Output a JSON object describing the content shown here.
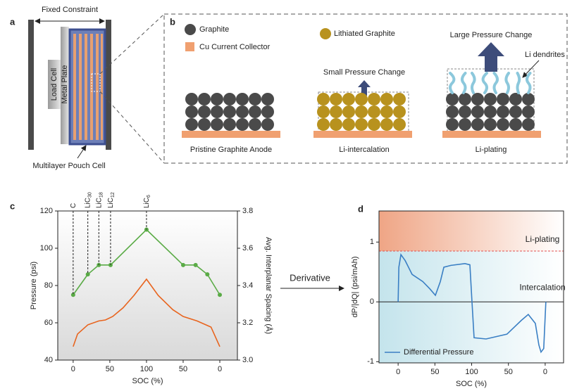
{
  "panel_labels": [
    "a",
    "b",
    "c",
    "d"
  ],
  "panel_a": {
    "constraint": "Fixed Constraint",
    "load_cell": "Load Cell",
    "metal_plate": "Metal Plate",
    "pouch_cell": "Multilayer Pouch Cell"
  },
  "panel_b": {
    "graphite": "Graphite",
    "collector": "Cu Current Collector",
    "lithiated": "Lithiated Graphite",
    "small_change": "Small Pressure Change",
    "large_change": "Large Pressure Change",
    "dendrites": "Li dendrites",
    "stages": [
      "Pristine Graphite Anode",
      "Li-intercalation",
      "Li-plating"
    ]
  },
  "derivative": "Derivative",
  "chart_data": [
    {
      "type": "line",
      "xlabel": "SOC (%)",
      "ylabel": "Pressure (psi)",
      "y2label": "Avg. Interplanar Spacing (Å)",
      "xlim": [
        -21,
        224
      ],
      "xticks": [
        0,
        50,
        100,
        {
          "value": 150,
          "label": "50"
        },
        {
          "value": 200,
          "label": "0"
        }
      ],
      "ylim": [
        40,
        120
      ],
      "yticks": [
        40,
        60,
        80,
        100,
        120
      ],
      "y2lim": [
        3.0,
        3.8
      ],
      "y2ticks": [
        {
          "value": 3.0,
          "label": "3.0"
        },
        3.2,
        3.4,
        3.6,
        3.8
      ],
      "series": [
        {
          "color": "#e8641e",
          "x": [
            0,
            6,
            20,
            35,
            44,
            54,
            68,
            83,
            100,
            116,
            136,
            150,
            169,
            188,
            200
          ],
          "values": [
            47.2,
            54,
            58.9,
            61,
            61.5,
            63.4,
            68,
            74.7,
            83.4,
            74.7,
            67,
            63.4,
            61,
            57.7,
            47.2
          ]
        },
        {
          "color": "#5aab46",
          "axis": "y2",
          "markers": true,
          "x": [
            0,
            20,
            35,
            51,
            100,
            150,
            167,
            183,
            200
          ],
          "values": [
            3.35,
            3.46,
            3.51,
            3.51,
            3.7,
            3.51,
            3.51,
            3.46,
            3.35
          ]
        }
      ],
      "annotations": [
        {
          "text": "C",
          "x": 0
        },
        {
          "text": "LiC",
          "sub": "30",
          "x": 20
        },
        {
          "text": "LiC",
          "sub": "18",
          "x": 35
        },
        {
          "text": "LiC",
          "sub": "12",
          "x": 51
        },
        {
          "text": "LiC",
          "sub": "6",
          "x": 100
        }
      ]
    },
    {
      "type": "line",
      "xlabel": "SOC (%)",
      "ylabel": "dP/|dQ| (psi/mAh)",
      "xlim": [
        -26,
        225
      ],
      "xticks": [
        0,
        50,
        100,
        {
          "value": 150,
          "label": "50"
        },
        {
          "value": 200,
          "label": "0"
        }
      ],
      "ylim": [
        -1.02,
        1.52
      ],
      "yticks": [
        -1,
        0,
        1
      ],
      "threshold": 0.85,
      "region_labels": [
        "Li-plating",
        "Intercalation"
      ],
      "legend": "lower left",
      "series": [
        {
          "name": "Differential Pressure",
          "color": "#3a7fc4",
          "x": [
            0,
            1,
            3.8,
            9.6,
            19,
            33.5,
            43,
            50.7,
            57.4,
            62.2,
            71.8,
            90.9,
            97.6,
            100.5,
            103.3,
            119.6,
            148,
            167.5,
            177,
            186.6,
            191.4,
            194.3,
            198,
            200.9
          ],
          "values": [
            0,
            0.58,
            0.79,
            0.69,
            0.46,
            0.34,
            0.22,
            0.11,
            0.34,
            0.58,
            0.61,
            0.64,
            0.62,
            -0.01,
            -0.6,
            -0.62,
            -0.54,
            -0.31,
            -0.21,
            -0.36,
            -0.72,
            -0.84,
            -0.78,
            0
          ]
        }
      ]
    }
  ]
}
